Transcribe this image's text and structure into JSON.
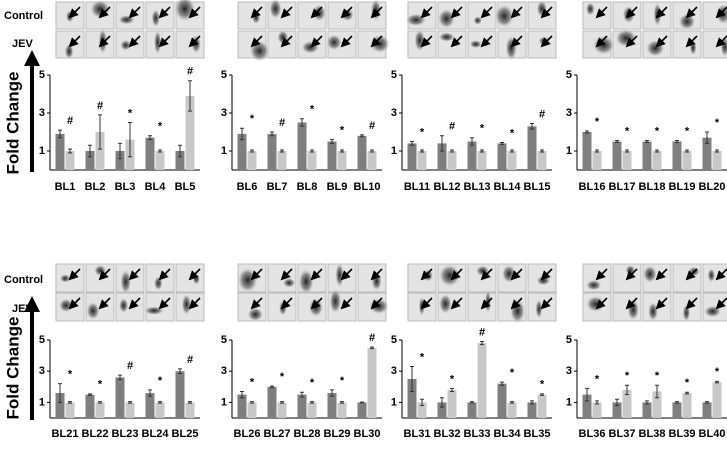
{
  "blocks": [
    {
      "row_labels": [
        "Control",
        "JEV"
      ],
      "y_label": "Fold Change"
    },
    {
      "row_labels": [
        "Control",
        "JEV"
      ],
      "y_label": "Fold Change"
    }
  ],
  "chart_data": [
    {
      "type": "bar",
      "categories": [
        "BL1",
        "BL2",
        "BL3",
        "BL4",
        "BL5"
      ],
      "ylim": [
        0,
        5
      ],
      "yticks": [
        1,
        3,
        5
      ],
      "markers": [
        "#",
        "#",
        "*",
        "*",
        "#"
      ],
      "series": [
        {
          "color": "#7f7f7f",
          "values": [
            1.9,
            1.0,
            1.0,
            1.7,
            1.0
          ],
          "errors": [
            0.2,
            0.3,
            0.4,
            0.1,
            0.3
          ]
        },
        {
          "color": "#c8c8c8",
          "values": [
            1.0,
            2.0,
            1.6,
            1.0,
            3.9
          ],
          "errors": [
            0.1,
            0.9,
            0.9,
            0.05,
            0.8
          ]
        }
      ]
    },
    {
      "type": "bar",
      "categories": [
        "BL6",
        "BL7",
        "BL8",
        "BL9",
        "BL10"
      ],
      "ylim": [
        0,
        5
      ],
      "yticks": [
        1,
        3,
        5
      ],
      "markers": [
        "*",
        "#",
        "*",
        "*",
        "#"
      ],
      "series": [
        {
          "color": "#7f7f7f",
          "values": [
            1.9,
            1.9,
            2.5,
            1.5,
            1.8
          ],
          "errors": [
            0.3,
            0.1,
            0.2,
            0.1,
            0.05
          ]
        },
        {
          "color": "#c8c8c8",
          "values": [
            1.0,
            1.0,
            1.0,
            1.0,
            1.0
          ],
          "errors": [
            0.05,
            0.05,
            0.05,
            0.05,
            0.05
          ]
        }
      ]
    },
    {
      "type": "bar",
      "categories": [
        "BL11",
        "BL12",
        "BL13",
        "BL14",
        "BL15"
      ],
      "ylim": [
        0,
        5
      ],
      "yticks": [
        1,
        3,
        5
      ],
      "markers": [
        "*",
        "#",
        "*",
        "*",
        "#"
      ],
      "series": [
        {
          "color": "#7f7f7f",
          "values": [
            1.4,
            1.4,
            1.5,
            1.4,
            2.3
          ],
          "errors": [
            0.1,
            0.4,
            0.2,
            0.05,
            0.15
          ]
        },
        {
          "color": "#c8c8c8",
          "values": [
            1.0,
            1.0,
            1.0,
            1.0,
            1.0
          ],
          "errors": [
            0.05,
            0.05,
            0.05,
            0.05,
            0.05
          ]
        }
      ]
    },
    {
      "type": "bar",
      "categories": [
        "BL16",
        "BL17",
        "BL18",
        "BL19",
        "BL20"
      ],
      "ylim": [
        0,
        5
      ],
      "yticks": [
        1,
        3,
        5
      ],
      "markers": [
        "*",
        "*",
        "*",
        "*",
        "*"
      ],
      "series": [
        {
          "color": "#7f7f7f",
          "values": [
            2.0,
            1.5,
            1.5,
            1.5,
            1.7
          ],
          "errors": [
            0.05,
            0.05,
            0.05,
            0.05,
            0.3
          ]
        },
        {
          "color": "#c8c8c8",
          "values": [
            1.0,
            1.0,
            1.0,
            1.0,
            1.0
          ],
          "errors": [
            0.05,
            0.05,
            0.05,
            0.05,
            0.05
          ]
        }
      ]
    },
    {
      "type": "bar",
      "categories": [
        "BL21",
        "BL22",
        "BL23",
        "BL24",
        "BL25"
      ],
      "ylim": [
        0,
        5
      ],
      "yticks": [
        1,
        3,
        5
      ],
      "markers": [
        "*",
        "*",
        "#",
        "*",
        "#"
      ],
      "series": [
        {
          "color": "#7f7f7f",
          "values": [
            1.6,
            1.5,
            2.6,
            1.6,
            3.0
          ],
          "errors": [
            0.6,
            0.05,
            0.15,
            0.2,
            0.15
          ]
        },
        {
          "color": "#c8c8c8",
          "values": [
            1.0,
            1.0,
            1.0,
            1.0,
            1.0
          ],
          "errors": [
            0.05,
            0.05,
            0.05,
            0.05,
            0.05
          ]
        }
      ]
    },
    {
      "type": "bar",
      "categories": [
        "BL26",
        "BL27",
        "BL28",
        "BL29",
        "BL30"
      ],
      "ylim": [
        0,
        5
      ],
      "yticks": [
        1,
        3,
        5
      ],
      "markers": [
        "*",
        "*",
        "*",
        "*",
        "#"
      ],
      "series": [
        {
          "color": "#7f7f7f",
          "values": [
            1.5,
            2.0,
            1.5,
            1.6,
            1.0
          ],
          "errors": [
            0.2,
            0.05,
            0.15,
            0.2,
            0.02
          ]
        },
        {
          "color": "#c8c8c8",
          "values": [
            1.0,
            1.0,
            1.0,
            1.0,
            4.5
          ],
          "errors": [
            0.05,
            0.05,
            0.05,
            0.05,
            0.05
          ]
        }
      ]
    },
    {
      "type": "bar",
      "categories": [
        "BL31",
        "BL32",
        "BL33",
        "BL34",
        "BL35"
      ],
      "ylim": [
        0,
        5
      ],
      "yticks": [
        1,
        3,
        5
      ],
      "markers": [
        "*",
        "*",
        "#",
        "*",
        "*"
      ],
      "series": [
        {
          "color": "#7f7f7f",
          "values": [
            2.5,
            1.0,
            1.0,
            2.2,
            1.0
          ],
          "errors": [
            0.8,
            0.3,
            0.05,
            0.1,
            0.1
          ]
        },
        {
          "color": "#c8c8c8",
          "values": [
            1.0,
            1.8,
            4.8,
            1.0,
            1.5
          ],
          "errors": [
            0.2,
            0.1,
            0.1,
            0.05,
            0.05
          ]
        }
      ]
    },
    {
      "type": "bar",
      "categories": [
        "BL36",
        "BL37",
        "BL38",
        "BL39",
        "BL40"
      ],
      "ylim": [
        0,
        5
      ],
      "yticks": [
        1,
        3,
        5
      ],
      "markers": [
        "*",
        "*",
        "*",
        "*",
        "*"
      ],
      "series": [
        {
          "color": "#7f7f7f",
          "values": [
            1.5,
            1.0,
            1.0,
            1.0,
            1.0
          ],
          "errors": [
            0.4,
            0.2,
            0.1,
            0.05,
            0.05
          ]
        },
        {
          "color": "#c8c8c8",
          "values": [
            1.0,
            1.8,
            1.7,
            1.6,
            2.3
          ],
          "errors": [
            0.1,
            0.3,
            0.4,
            0.05,
            0.05
          ]
        }
      ]
    }
  ]
}
